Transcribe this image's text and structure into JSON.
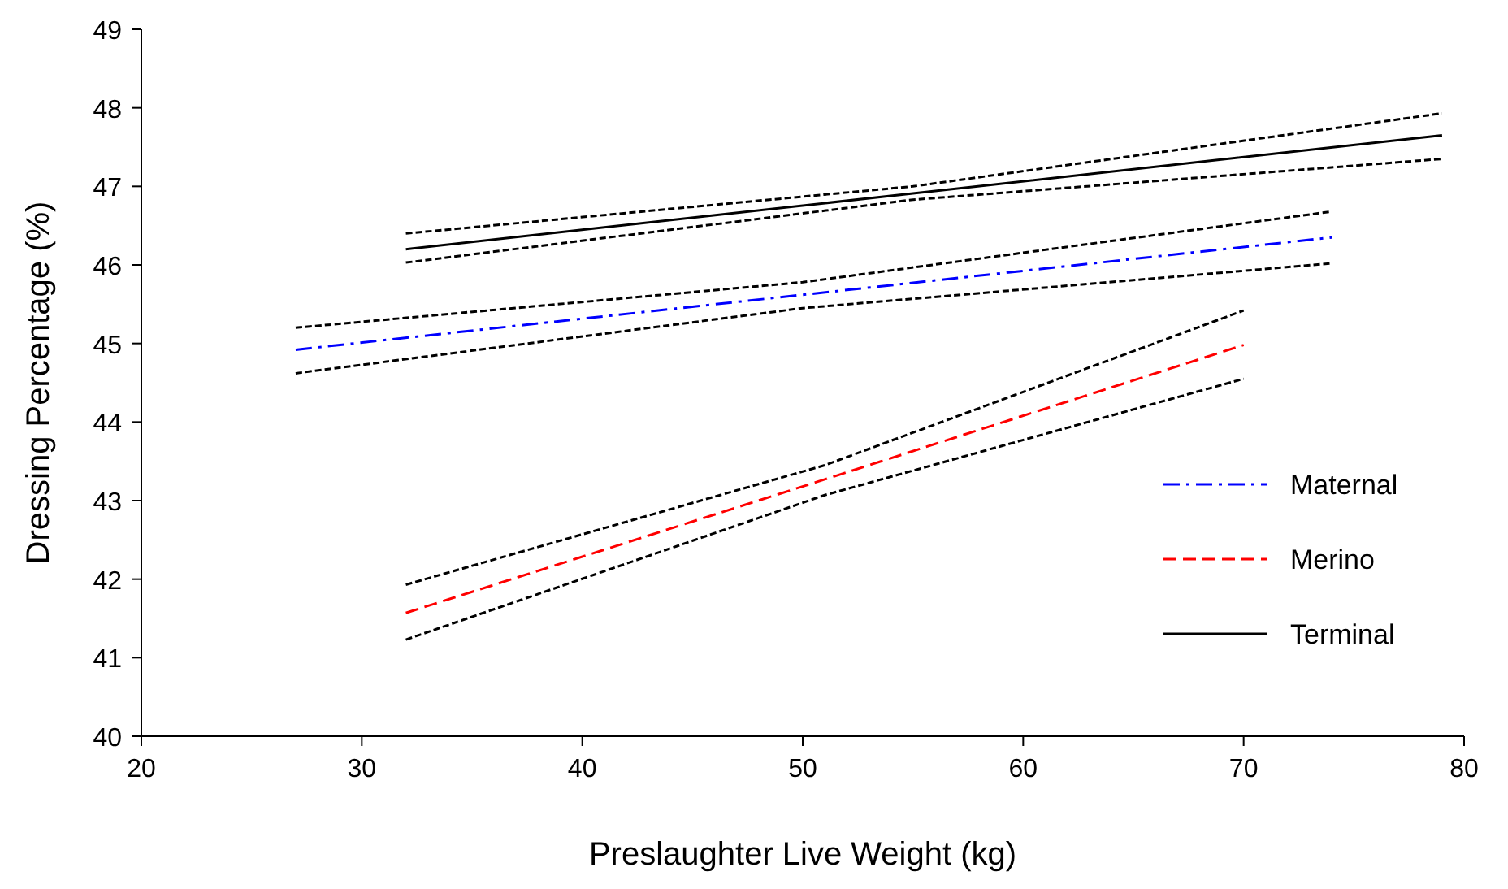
{
  "chart_data": {
    "type": "line",
    "xlabel": "Preslaughter Live Weight (kg)",
    "ylabel": "Dressing Percentage (%)",
    "xlim": [
      20,
      80
    ],
    "xticks": [
      20,
      30,
      40,
      50,
      60,
      70,
      80
    ],
    "ylim": [
      40,
      49
    ],
    "yticks": [
      40,
      41,
      42,
      43,
      44,
      45,
      46,
      47,
      48,
      49
    ],
    "grid": false,
    "legend": "bottom right",
    "marker": "none",
    "series": [
      {
        "name": "Maternal",
        "color": "#0000ff",
        "line_style": "dashdot",
        "x": [
          27,
          50,
          74
        ],
        "values": [
          44.92,
          45.62,
          46.35
        ]
      },
      {
        "name": "Merino",
        "color": "#ff0000",
        "line_style": "dashed",
        "x": [
          32,
          51,
          70
        ],
        "values": [
          41.57,
          43.27,
          44.98
        ]
      },
      {
        "name": "Terminal",
        "color": "#000000",
        "line_style": "solid",
        "x": [
          32,
          55,
          79
        ],
        "values": [
          46.2,
          46.91,
          47.65
        ]
      },
      {
        "color": "#000000",
        "line_style": "dotted",
        "x": [
          27,
          50,
          74
        ],
        "values": [
          44.62,
          45.45,
          46.02
        ]
      },
      {
        "color": "#000000",
        "line_style": "dotted",
        "x": [
          27,
          50,
          74
        ],
        "values": [
          45.2,
          45.78,
          46.68
        ]
      },
      {
        "color": "#000000",
        "line_style": "dotted",
        "x": [
          32,
          51,
          70
        ],
        "values": [
          41.23,
          43.07,
          44.55
        ]
      },
      {
        "color": "#000000",
        "line_style": "dotted",
        "x": [
          32,
          51,
          70
        ],
        "values": [
          41.93,
          43.45,
          45.42
        ]
      },
      {
        "color": "#000000",
        "line_style": "dotted",
        "x": [
          32,
          55,
          79
        ],
        "values": [
          46.03,
          46.83,
          47.35
        ]
      },
      {
        "color": "#000000",
        "line_style": "dotted",
        "x": [
          32,
          55,
          79
        ],
        "values": [
          46.4,
          47.0,
          47.93
        ]
      }
    ]
  }
}
